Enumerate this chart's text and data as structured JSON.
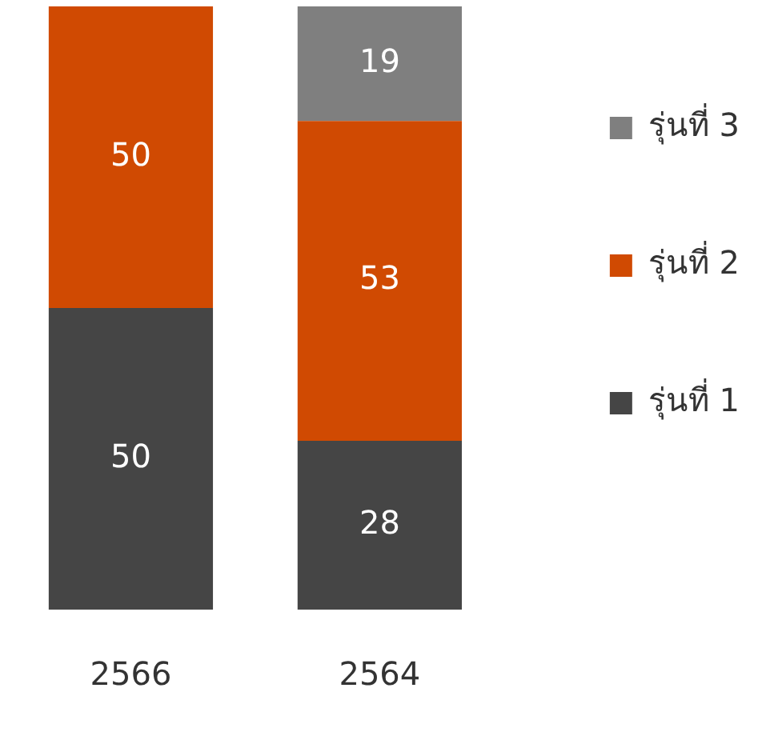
{
  "chart_data": {
    "type": "bar",
    "stacked": true,
    "data_labels": true,
    "legend": "right",
    "categories": [
      "2566",
      "2564"
    ],
    "series": [
      {
        "name": "รุ่นที่ 1",
        "color": "#454545",
        "values": [
          50,
          28
        ]
      },
      {
        "name": "รุ่นที่ 2",
        "color": "#d04a02",
        "values": [
          50,
          53
        ]
      },
      {
        "name": "รุ่นที่ 3",
        "color": "#7f7f7f",
        "values": [
          null,
          19
        ]
      }
    ]
  }
}
